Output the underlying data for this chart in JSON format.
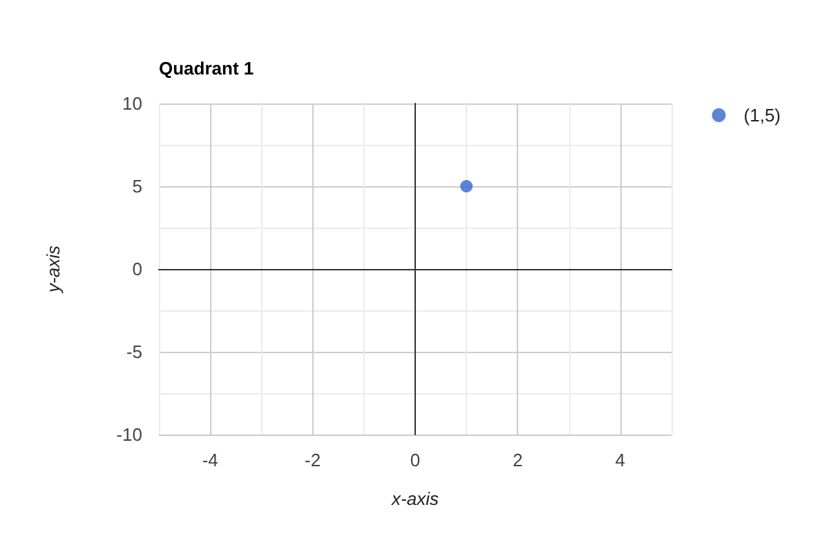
{
  "chart_data": {
    "type": "scatter",
    "title": "Quadrant 1",
    "xlabel": "x-axis",
    "ylabel": "y-axis",
    "x": [
      1
    ],
    "series": [
      {
        "name": "(1,5)",
        "color": "#3366cc",
        "values": [
          5
        ]
      }
    ],
    "xlim": [
      -5,
      5
    ],
    "xticks": [
      -4,
      -2,
      0,
      2,
      4
    ],
    "ylim": [
      -10,
      10
    ],
    "yticks": [
      -10,
      -5,
      0,
      5,
      10
    ],
    "grid": true,
    "legend": "top right",
    "marker": "circle"
  }
}
